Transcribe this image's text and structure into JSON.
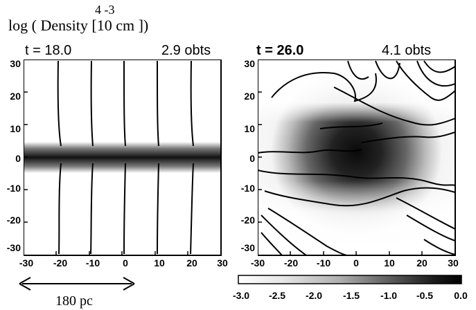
{
  "figure": {
    "title_main": "log ( Density [10  cm  ])",
    "title_exp": "4 -3",
    "scale_label": "180 pc",
    "panels": [
      {
        "time_label": "t = 18.0",
        "orbits_label": "2.9 obts"
      },
      {
        "time_label": "t = 26.0",
        "orbits_label": "4.1 obts"
      }
    ],
    "y_ticks": [
      "30",
      "20",
      "10",
      "0",
      "-10",
      "-20",
      "-30"
    ],
    "x_ticks": [
      "-30",
      "-20",
      "-10",
      "0",
      "10",
      "20",
      "30"
    ],
    "colorbar_ticks": [
      "-3.0",
      "-2.5",
      "-2.0",
      "-1.5",
      "-1.0",
      "-0.5",
      "0.0"
    ]
  }
}
